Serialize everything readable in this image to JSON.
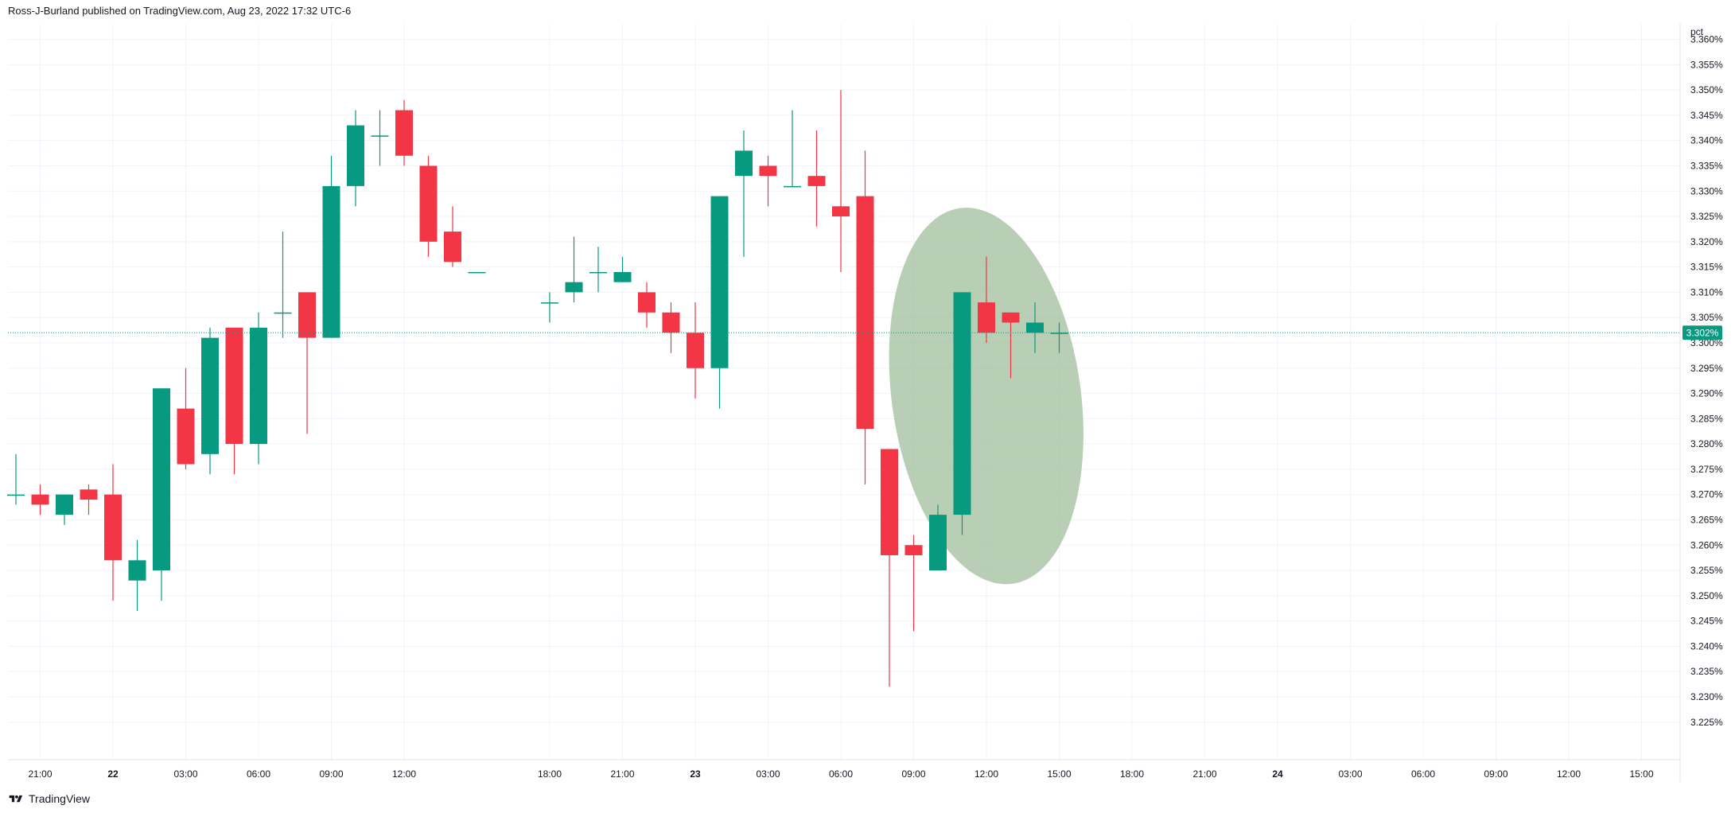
{
  "header": {
    "published_by": "Ross-J-Burland published on TradingView.com, Aug 23, 2022 17:32 UTC-6"
  },
  "footer": {
    "brand": "TradingView",
    "logo_icon": "tradingview-logo-icon"
  },
  "colors": {
    "up": "#089981",
    "down": "#f23645",
    "ellipse_fill": "#9ab995",
    "price_line": "#089981",
    "grid": "#f0f3fa",
    "axis_text": "#131722"
  },
  "chart_data": {
    "type": "candlestick",
    "ylabel": "pct",
    "ylim": [
      3.2215,
      3.3615
    ],
    "y_ticks": [
      "3.360%",
      "3.355%",
      "3.350%",
      "3.345%",
      "3.340%",
      "3.335%",
      "3.330%",
      "3.325%",
      "3.320%",
      "3.315%",
      "3.310%",
      "3.305%",
      "3.300%",
      "3.295%",
      "3.290%",
      "3.285%",
      "3.280%",
      "3.275%",
      "3.270%",
      "3.265%",
      "3.260%",
      "3.255%",
      "3.250%",
      "3.245%",
      "3.240%",
      "3.235%",
      "3.230%",
      "3.225%"
    ],
    "x_ticks": [
      "21:00",
      "22",
      "03:00",
      "06:00",
      "09:00",
      "12:00",
      "18:00",
      "21:00",
      "23",
      "03:00",
      "06:00",
      "09:00",
      "12:00",
      "15:00",
      "18:00",
      "21:00",
      "24",
      "03:00",
      "06:00",
      "09:00",
      "12:00",
      "15:00"
    ],
    "current_price": 3.302,
    "current_price_label": "3.302%",
    "grid": true,
    "candles": [
      {
        "t": "Aug 21 20:00",
        "o": 3.27,
        "h": 3.278,
        "l": 3.268,
        "c": 3.27
      },
      {
        "t": "Aug 21 21:00",
        "o": 3.27,
        "h": 3.272,
        "l": 3.266,
        "c": 3.268
      },
      {
        "t": "Aug 21 22:00",
        "o": 3.266,
        "h": 3.27,
        "l": 3.264,
        "c": 3.27
      },
      {
        "t": "Aug 21 23:00",
        "o": 3.271,
        "h": 3.272,
        "l": 3.266,
        "c": 3.269
      },
      {
        "t": "Aug 22 00:00",
        "o": 3.27,
        "h": 3.276,
        "l": 3.249,
        "c": 3.257
      },
      {
        "t": "Aug 22 01:00",
        "o": 3.253,
        "h": 3.261,
        "l": 3.247,
        "c": 3.257
      },
      {
        "t": "Aug 22 02:00",
        "o": 3.255,
        "h": 3.291,
        "l": 3.249,
        "c": 3.291
      },
      {
        "t": "Aug 22 03:00",
        "o": 3.287,
        "h": 3.295,
        "l": 3.275,
        "c": 3.276
      },
      {
        "t": "Aug 22 04:00",
        "o": 3.278,
        "h": 3.303,
        "l": 3.274,
        "c": 3.301
      },
      {
        "t": "Aug 22 05:00",
        "o": 3.303,
        "h": 3.303,
        "l": 3.274,
        "c": 3.28
      },
      {
        "t": "Aug 22 06:00",
        "o": 3.28,
        "h": 3.306,
        "l": 3.276,
        "c": 3.303
      },
      {
        "t": "Aug 22 07:00",
        "o": 3.306,
        "h": 3.322,
        "l": 3.301,
        "c": 3.306
      },
      {
        "t": "Aug 22 08:00",
        "o": 3.31,
        "h": 3.31,
        "l": 3.282,
        "c": 3.301
      },
      {
        "t": "Aug 22 09:00",
        "o": 3.301,
        "h": 3.337,
        "l": 3.301,
        "c": 3.331
      },
      {
        "t": "Aug 22 10:00",
        "o": 3.331,
        "h": 3.346,
        "l": 3.327,
        "c": 3.343
      },
      {
        "t": "Aug 22 11:00",
        "o": 3.341,
        "h": 3.346,
        "l": 3.335,
        "c": 3.341
      },
      {
        "t": "Aug 22 12:00",
        "o": 3.346,
        "h": 3.348,
        "l": 3.335,
        "c": 3.337
      },
      {
        "t": "Aug 22 13:00",
        "o": 3.335,
        "h": 3.337,
        "l": 3.317,
        "c": 3.32
      },
      {
        "t": "Aug 22 14:00",
        "o": 3.322,
        "h": 3.327,
        "l": 3.315,
        "c": 3.316
      },
      {
        "t": "Aug 22 15:00",
        "o": 3.314,
        "h": 3.314,
        "l": 3.314,
        "c": 3.314
      },
      {
        "t": "Aug 22 18:00",
        "o": 3.308,
        "h": 3.31,
        "l": 3.304,
        "c": 3.308
      },
      {
        "t": "Aug 22 19:00",
        "o": 3.31,
        "h": 3.321,
        "l": 3.308,
        "c": 3.312
      },
      {
        "t": "Aug 22 20:00",
        "o": 3.314,
        "h": 3.319,
        "l": 3.31,
        "c": 3.314
      },
      {
        "t": "Aug 22 21:00",
        "o": 3.312,
        "h": 3.317,
        "l": 3.312,
        "c": 3.314
      },
      {
        "t": "Aug 22 22:00",
        "o": 3.31,
        "h": 3.312,
        "l": 3.303,
        "c": 3.306
      },
      {
        "t": "Aug 22 23:00",
        "o": 3.306,
        "h": 3.308,
        "l": 3.298,
        "c": 3.302
      },
      {
        "t": "Aug 23 00:00",
        "o": 3.302,
        "h": 3.308,
        "l": 3.289,
        "c": 3.295
      },
      {
        "t": "Aug 23 01:00",
        "o": 3.295,
        "h": 3.329,
        "l": 3.287,
        "c": 3.329
      },
      {
        "t": "Aug 23 02:00",
        "o": 3.333,
        "h": 3.342,
        "l": 3.317,
        "c": 3.338
      },
      {
        "t": "Aug 23 03:00",
        "o": 3.335,
        "h": 3.337,
        "l": 3.327,
        "c": 3.333
      },
      {
        "t": "Aug 23 04:00",
        "o": 3.331,
        "h": 3.346,
        "l": 3.331,
        "c": 3.331
      },
      {
        "t": "Aug 23 05:00",
        "o": 3.333,
        "h": 3.342,
        "l": 3.323,
        "c": 3.331
      },
      {
        "t": "Aug 23 06:00",
        "o": 3.327,
        "h": 3.35,
        "l": 3.314,
        "c": 3.325
      },
      {
        "t": "Aug 23 07:00",
        "o": 3.329,
        "h": 3.338,
        "l": 3.272,
        "c": 3.283
      },
      {
        "t": "Aug 23 08:00",
        "o": 3.279,
        "h": 3.279,
        "l": 3.232,
        "c": 3.258
      },
      {
        "t": "Aug 23 09:00",
        "o": 3.26,
        "h": 3.262,
        "l": 3.243,
        "c": 3.258
      },
      {
        "t": "Aug 23 10:00",
        "o": 3.255,
        "h": 3.268,
        "l": 3.255,
        "c": 3.266
      },
      {
        "t": "Aug 23 11:00",
        "o": 3.266,
        "h": 3.31,
        "l": 3.262,
        "c": 3.31
      },
      {
        "t": "Aug 23 12:00",
        "o": 3.308,
        "h": 3.317,
        "l": 3.3,
        "c": 3.302
      },
      {
        "t": "Aug 23 13:00",
        "o": 3.306,
        "h": 3.306,
        "l": 3.293,
        "c": 3.304
      },
      {
        "t": "Aug 23 14:00",
        "o": 3.302,
        "h": 3.308,
        "l": 3.298,
        "c": 3.304
      },
      {
        "t": "Aug 23 15:00",
        "o": 3.302,
        "h": 3.304,
        "l": 3.298,
        "c": 3.302
      }
    ],
    "annotation": {
      "shape": "ellipse",
      "from": "Aug 23 08:00",
      "to": "Aug 23 15:00",
      "price_top": 3.327,
      "price_bottom": 3.252,
      "rotation": "slight clockwise tilt"
    }
  }
}
